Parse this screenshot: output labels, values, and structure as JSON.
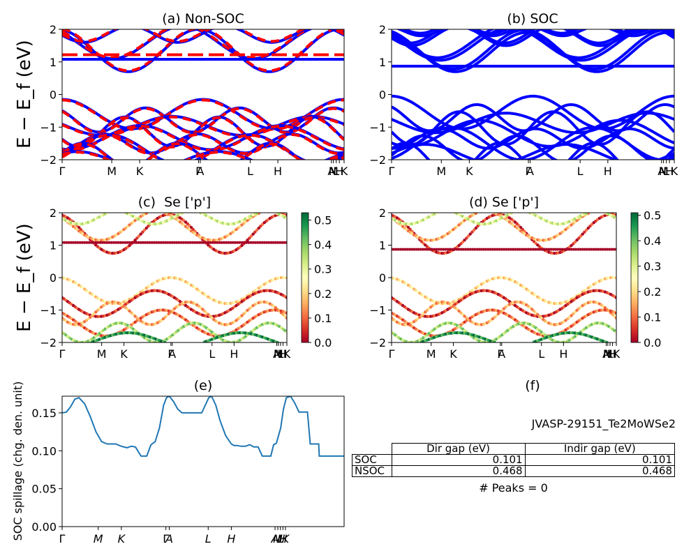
{
  "chart_data": [
    {
      "type": "line",
      "title": "(a) Non-SOC",
      "ylabel": "E − E_f (eV)",
      "ylim": [
        -2,
        2
      ],
      "yticks": [
        "−2",
        "−1",
        "0",
        "1",
        "2"
      ],
      "kpath_labels": [
        "Γ",
        "M",
        "K",
        "Γ",
        "A",
        "L",
        "H",
        "A",
        "M",
        "L",
        "H",
        "K"
      ],
      "colors": {
        "spin_up": "#0000ff",
        "spin_down": "#ff0000"
      },
      "flat_levels": {
        "spin_up": 1.08,
        "spin_down": 1.22
      },
      "series": [
        {
          "color": "spin_up",
          "values": [
            0.78,
            1.5,
            1.84
          ]
        },
        {
          "color": "spin_down",
          "values": [
            0.82,
            1.55,
            1.88
          ]
        }
      ]
    },
    {
      "type": "line",
      "title": "(b) SOC",
      "ylim": [
        -2,
        2
      ],
      "yticks": [
        "−2",
        "−1",
        "0",
        "1",
        "2"
      ],
      "kpath_labels": [
        "Γ",
        "M",
        "K",
        "Γ",
        "A",
        "L",
        "H",
        "A",
        "M",
        "L",
        "H",
        "K"
      ],
      "colors": {
        "bands": "#0000ff"
      },
      "flat_levels": {
        "bands": 0.87
      }
    },
    {
      "type": "scatter",
      "title": "(c)  Se ['p']",
      "ylabel": "E − E_f (eV)",
      "ylim": [
        -2,
        2
      ],
      "yticks": [
        "−2",
        "−1",
        "0",
        "1",
        "2"
      ],
      "kpath_labels": [
        "Γ",
        "M",
        "K",
        "Γ",
        "A",
        "L",
        "H",
        "A",
        "M",
        "L",
        "H",
        "K"
      ],
      "colorbar": {
        "cmap": "RdYlGn",
        "ticks": [
          "0.0",
          "0.1",
          "0.2",
          "0.3",
          "0.4",
          "0.5"
        ],
        "max": 0.53
      },
      "flat_level": 1.08
    },
    {
      "type": "scatter",
      "title": "(d) Se ['p']",
      "ylim": [
        -2,
        2
      ],
      "yticks": [
        "−2",
        "−1",
        "0",
        "1",
        "2"
      ],
      "kpath_labels": [
        "Γ",
        "M",
        "K",
        "Γ",
        "A",
        "L",
        "H",
        "A",
        "M",
        "L",
        "H",
        "K"
      ],
      "colorbar": {
        "cmap": "RdYlGn",
        "ticks": [
          "0.0",
          "0.1",
          "0.2",
          "0.3",
          "0.4",
          "0.5"
        ],
        "max": 0.51
      },
      "flat_level": 0.87
    },
    {
      "type": "line",
      "title": "(e)",
      "ylabel": "SOC spillage (chg. den. unit)",
      "ylim": [
        0,
        0.172
      ],
      "yticks": [
        0.0,
        0.05,
        0.1,
        0.15
      ],
      "ytick_labels": [
        "0.00",
        "0.05",
        "0.10",
        "0.15"
      ],
      "xlim": [
        0,
        100
      ],
      "xticks": [
        {
          "label": "Γ",
          "x": 0
        },
        {
          "label": "M",
          "x": 12.8
        },
        {
          "label": "K",
          "x": 21
        },
        {
          "label": "Γ",
          "x": 36.8
        },
        {
          "label": "A",
          "x": 38
        },
        {
          "label": "L",
          "x": 51.8
        },
        {
          "label": "H",
          "x": 60
        },
        {
          "label": "A",
          "x": 75.5
        },
        {
          "label": "M",
          "x": 76.5
        },
        {
          "label": "L",
          "x": 77.4
        },
        {
          "label": "H",
          "x": 78.3
        },
        {
          "label": "K",
          "x": 79.2
        }
      ],
      "x": [
        0,
        1.5,
        3,
        4.5,
        6,
        8,
        10,
        12,
        14,
        16,
        17.5,
        19,
        21,
        23,
        24.5,
        26,
        28,
        28.5,
        30,
        31.5,
        33,
        34.5,
        36,
        37,
        38,
        39.5,
        41,
        42.5,
        44,
        46,
        48,
        49.5,
        51,
        52,
        53,
        54.5,
        56,
        58,
        60,
        61,
        62,
        63.5,
        65,
        66.5,
        68,
        69.5,
        71,
        72.5,
        74,
        75,
        76,
        77.5,
        78.5,
        79.5,
        81,
        82.5,
        84,
        85.5,
        87,
        88,
        91,
        91.2,
        92,
        96,
        100
      ],
      "values": [
        0.15,
        0.151,
        0.158,
        0.168,
        0.17,
        0.162,
        0.145,
        0.125,
        0.112,
        0.109,
        0.109,
        0.109,
        0.106,
        0.104,
        0.106,
        0.105,
        0.093,
        0.093,
        0.093,
        0.108,
        0.112,
        0.13,
        0.16,
        0.17,
        0.172,
        0.165,
        0.155,
        0.15,
        0.15,
        0.15,
        0.15,
        0.15,
        0.162,
        0.17,
        0.172,
        0.16,
        0.14,
        0.12,
        0.109,
        0.107,
        0.107,
        0.106,
        0.106,
        0.108,
        0.105,
        0.105,
        0.093,
        0.093,
        0.093,
        0.108,
        0.11,
        0.13,
        0.155,
        0.17,
        0.172,
        0.163,
        0.151,
        0.151,
        0.151,
        0.109,
        0.109,
        0.093,
        0.093,
        0.093,
        0.093
      ]
    }
  ],
  "info_panel": {
    "title": "(f)",
    "material": "JVASP-29151_Te2MoWSe2",
    "table": {
      "headers": [
        "Dir gap (eV)",
        "Indir gap (eV)"
      ],
      "rows": [
        {
          "label": "SOC",
          "dir": "0.101",
          "indir": "0.101"
        },
        {
          "label": "NSOC",
          "dir": "0.468",
          "indir": "0.468"
        }
      ]
    },
    "peaks": "# Peaks = 0"
  }
}
